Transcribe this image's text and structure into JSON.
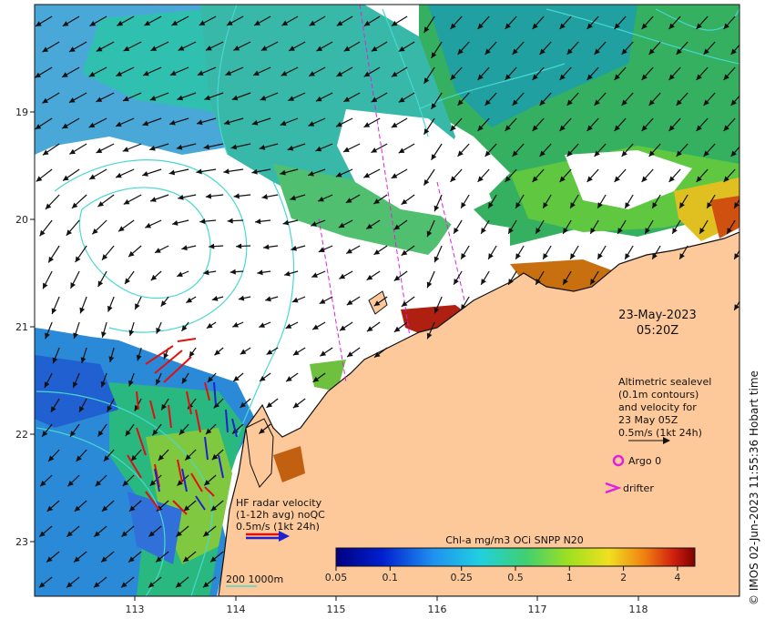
{
  "map": {
    "lon_ticks": [
      "113",
      "114",
      "115",
      "116",
      "117",
      "118"
    ],
    "lat_ticks": [
      "19",
      "20",
      "21",
      "22",
      "23"
    ],
    "date": "23-May-2023",
    "time": "05:20Z",
    "altimetry_legend": [
      "Altimetric sealevel",
      "(0.1m contours)",
      "and velocity for",
      "23 May 05Z",
      "0.5m/s (1kt 24h)"
    ],
    "argo_label": "Argo 0",
    "drifter_label": "drifter",
    "hf_radar_legend": [
      "HF radar velocity",
      "(1-12h avg) noQC",
      "0.5m/s (1kt 24h)"
    ],
    "scale_label": "200  1000m",
    "credit": "© IMOS 02-Jun-2023 11:55:36 Hobart time",
    "colors": {
      "land": "#fdc99a",
      "arrow": "#111111",
      "contour": "#48d8d0",
      "hf_red": "#e01010",
      "hf_blue": "#2020d0",
      "argo": "#e020e0"
    }
  },
  "colorbar": {
    "title": "Chl-a mg/m3 OCi SNPP N20",
    "ticks": [
      "0.05",
      "0.1",
      "0.25",
      "0.5",
      "1",
      "2",
      "4"
    ],
    "tick_values": [
      0.05,
      0.1,
      0.25,
      0.5,
      1,
      2,
      4
    ],
    "range": [
      0.05,
      5
    ],
    "scale": "log"
  }
}
